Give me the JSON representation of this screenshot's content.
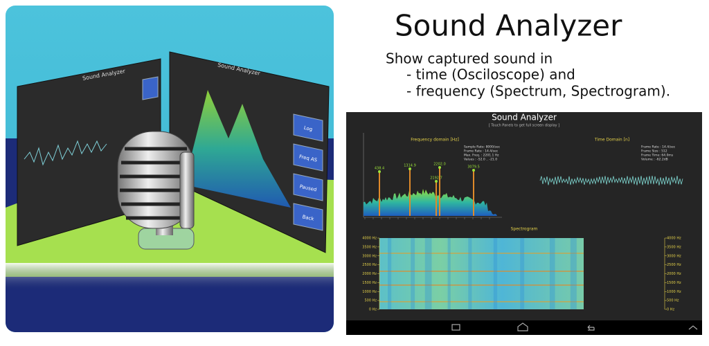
{
  "promo": {
    "title": "Sound Analyzer",
    "description": [
      "Show captured sound in",
      "- time (Osciloscope) and",
      "- frequency (Spectrum, Spectrogram)."
    ]
  },
  "illustration": {
    "left_panel_title": "Sound Analyzer",
    "right_panel_title": "Sound Analyzer",
    "buttons": [
      "Log",
      "Freq AS",
      "Paused",
      "Back"
    ]
  },
  "screenshot": {
    "app_title": "Sound Analyzer",
    "hint": "[ Touch Panels to get full screen display ]",
    "frequency_panel": {
      "title": "Frequency domain [Hz]",
      "info": [
        "Sample Rate: 8000/sec",
        "Frame Rate : 14.4/sec",
        "Max. Freq. : 2201.1 Hz",
        "Values : -52.0 .. -21.0"
      ],
      "peaks": [
        "438.4",
        "1314.9",
        "2202.0",
        "2192.7",
        "3079.5"
      ]
    },
    "time_panel": {
      "title": "Time Domain [n]",
      "info": [
        "Frame Rate : 14.4/sec",
        "Frame Size : 512",
        "Frame Time: 64.0ms",
        "Volume : -62.2dB"
      ]
    },
    "spectrogram": {
      "title": "Spectrogram",
      "axis_labels": [
        "4000 Hz",
        "3500 Hz",
        "3000 Hz",
        "2500 Hz",
        "2000 Hz",
        "1500 Hz",
        "1000 Hz",
        "500 Hz",
        "0 Hz"
      ]
    }
  }
}
